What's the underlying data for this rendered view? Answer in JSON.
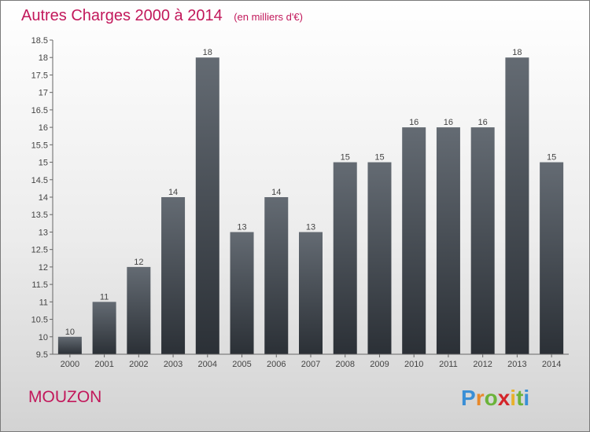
{
  "title": "Autres Charges 2000 à 2014",
  "subtitle": "(en milliers d'€)",
  "location": "MOUZON",
  "logo_text": "Proxiti",
  "colors": {
    "accent": "#c2185b",
    "bar_top": "#646b73",
    "bar_bottom": "#2b3036"
  },
  "chart_data": {
    "type": "bar",
    "title": "Autres Charges 2000 à 2014",
    "subtitle": "(en milliers d'€)",
    "categories": [
      "2000",
      "2001",
      "2002",
      "2003",
      "2004",
      "2005",
      "2006",
      "2007",
      "2008",
      "2009",
      "2010",
      "2011",
      "2012",
      "2013",
      "2014"
    ],
    "values": [
      10,
      11,
      12,
      14,
      18,
      13,
      14,
      13,
      15,
      15,
      16,
      16,
      16,
      18,
      15
    ],
    "ylim": [
      9.5,
      18.5
    ],
    "yticks": [
      "9.5",
      "10",
      "10.5",
      "11",
      "11.5",
      "12",
      "12.5",
      "13",
      "13.5",
      "14",
      "14.5",
      "15",
      "15.5",
      "16",
      "16.5",
      "17",
      "17.5",
      "18",
      "18.5"
    ],
    "grid": false,
    "data_labels": true
  }
}
